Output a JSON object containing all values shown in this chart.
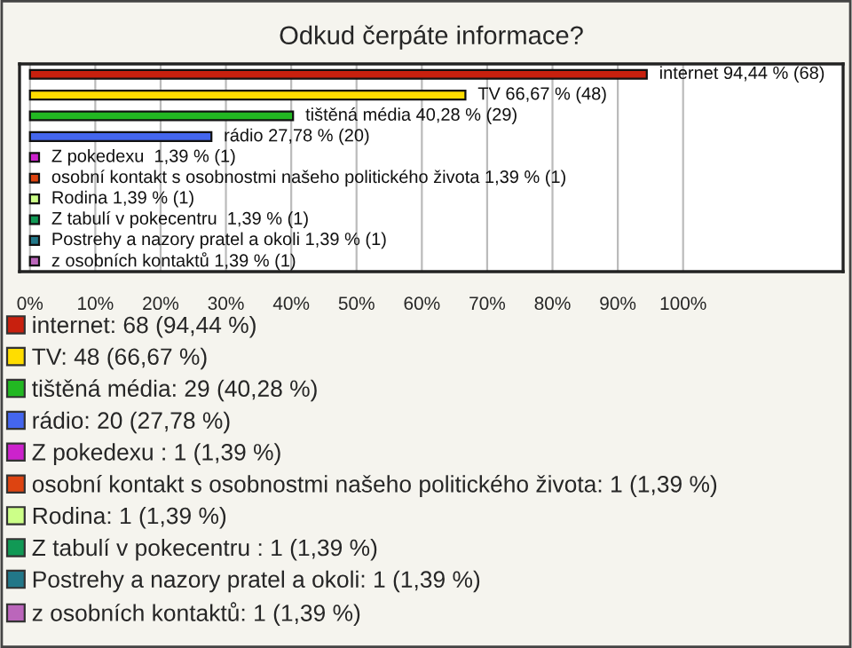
{
  "chart_data": {
    "type": "bar",
    "orientation": "horizontal",
    "title": "Odkud čerpáte informace?",
    "categories": [
      null,
      null,
      null,
      null,
      null,
      null,
      null,
      null,
      null,
      null
    ],
    "series": [
      {
        "name": "internet: 68 (94,44 %)",
        "color": "#c8200e",
        "values": [
          94.44,
          null,
          null,
          null,
          null,
          null,
          null,
          null,
          null,
          null
        ],
        "value_labels": [
          "internet 94,44 % (68)",
          null,
          null,
          null,
          null,
          null,
          null,
          null,
          null,
          null
        ]
      },
      {
        "name": "TV: 48 (66,67 %)",
        "color": "#ffdd00",
        "values": [
          null,
          66.67,
          null,
          null,
          null,
          null,
          null,
          null,
          null,
          null
        ],
        "value_labels": [
          null,
          "TV 66,67 % (48)",
          null,
          null,
          null,
          null,
          null,
          null,
          null,
          null
        ]
      },
      {
        "name": "tištěná média: 29 (40,28 %)",
        "color": "#22b822",
        "values": [
          null,
          null,
          40.28,
          null,
          null,
          null,
          null,
          null,
          null,
          null
        ],
        "value_labels": [
          null,
          null,
          "tištěná média 40,28 % (29)",
          null,
          null,
          null,
          null,
          null,
          null,
          null
        ]
      },
      {
        "name": "rádio: 20 (27,78 %)",
        "color": "#4466ee",
        "values": [
          null,
          null,
          null,
          27.78,
          null,
          null,
          null,
          null,
          null,
          null
        ],
        "value_labels": [
          null,
          null,
          null,
          "rádio 27,78 % (20)",
          null,
          null,
          null,
          null,
          null,
          null
        ]
      },
      {
        "name": "Z pokedexu : 1 (1,39 %)",
        "color": "#cc22cc",
        "values": [
          null,
          null,
          null,
          null,
          1.39,
          null,
          null,
          null,
          null,
          null
        ],
        "value_labels": [
          null,
          null,
          null,
          null,
          "Z pokedexu  1,39 % (1)",
          null,
          null,
          null,
          null,
          null
        ]
      },
      {
        "name": "osobní kontakt s osobnostmi našeho politického života: 1 (1,39 %)",
        "color": "#dd4411",
        "values": [
          null,
          null,
          null,
          null,
          null,
          1.39,
          null,
          null,
          null,
          null
        ],
        "value_labels": [
          null,
          null,
          null,
          null,
          null,
          "osobní kontakt s osobnostmi našeho politického života 1,39 % (1)",
          null,
          null,
          null,
          null
        ]
      },
      {
        "name": "Rodina: 1 (1,39 %)",
        "color": "#ccff88",
        "values": [
          null,
          null,
          null,
          null,
          null,
          null,
          1.39,
          null,
          null,
          null
        ],
        "value_labels": [
          null,
          null,
          null,
          null,
          null,
          null,
          "Rodina 1,39 % (1)",
          null,
          null,
          null
        ]
      },
      {
        "name": "Z tabulí v pokecentru : 1 (1,39 %)",
        "color": "#119955",
        "values": [
          null,
          null,
          null,
          null,
          null,
          null,
          null,
          1.39,
          null,
          null
        ],
        "value_labels": [
          null,
          null,
          null,
          null,
          null,
          null,
          null,
          "Z tabulí v pokecentru  1,39 % (1)",
          null,
          null
        ]
      },
      {
        "name": "Postrehy a nazory pratel a okoli: 1 (1,39 %)",
        "color": "#227788",
        "values": [
          null,
          null,
          null,
          null,
          null,
          null,
          null,
          null,
          1.39,
          null
        ],
        "value_labels": [
          null,
          null,
          null,
          null,
          null,
          null,
          null,
          null,
          "Postrehy a nazory pratel a okoli 1,39 % (1)",
          null
        ]
      },
      {
        "name": "z osobních kontaktů: 1 (1,39 %)",
        "color": "#bb66bb",
        "values": [
          null,
          null,
          null,
          null,
          null,
          null,
          null,
          null,
          null,
          1.39
        ],
        "value_labels": [
          null,
          null,
          null,
          null,
          null,
          null,
          null,
          null,
          null,
          "z osobních kontaktů 1,39 % (1)"
        ]
      }
    ],
    "xlim": [
      -1.6,
      124.5
    ],
    "xticks": [
      {
        "value": 0,
        "label": "0%"
      },
      {
        "value": 10,
        "label": "10%"
      },
      {
        "value": 20,
        "label": "20%"
      },
      {
        "value": 30,
        "label": "30%"
      },
      {
        "value": 40,
        "label": "40%"
      },
      {
        "value": 50,
        "label": "50%"
      },
      {
        "value": 60,
        "label": "60%"
      },
      {
        "value": 70,
        "label": "70%"
      },
      {
        "value": 80,
        "label": "80%"
      },
      {
        "value": 90,
        "label": "90%"
      },
      {
        "value": 100,
        "label": "100%"
      }
    ],
    "grid": "x",
    "legend": "bottom",
    "tick_labels": "x"
  }
}
